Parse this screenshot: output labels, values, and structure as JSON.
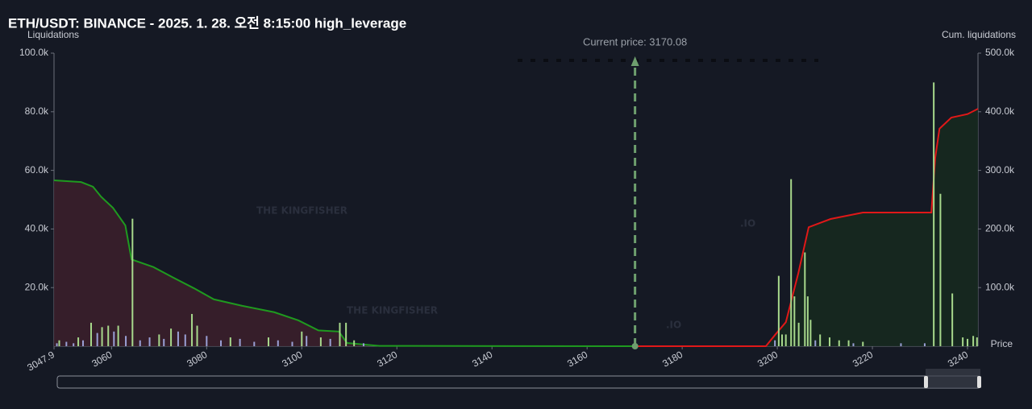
{
  "chart_data": {
    "type": "bar",
    "title": "ETH/USDT: BINANCE - 2025. 1. 28. 오전 8:15:00 high_leverage",
    "y_label": "Liquidations",
    "y2_label": "Cum. liquidations",
    "x_label": "Price",
    "watermark": "THE KINGFISHER",
    "watermark_suffix": ".IO",
    "annotation": {
      "x": 3170.08,
      "label": "Current price: 3170.08",
      "color": "#6e9f6e"
    },
    "xlim": [
      3047.9,
      3242.2
    ],
    "xticks": [
      3047.9,
      3060,
      3080,
      3100,
      3120,
      3140,
      3160,
      3180,
      3200,
      3220,
      3240
    ],
    "ylim": [
      0,
      100000
    ],
    "yticks": [
      {
        "value": 20000,
        "label": "20.0k"
      },
      {
        "value": 40000,
        "label": "40.0k"
      },
      {
        "value": 60000,
        "label": "60.0k"
      },
      {
        "value": 80000,
        "label": "80.0k"
      },
      {
        "value": 100000,
        "label": "100.0k"
      }
    ],
    "y2lim": [
      0,
      500000
    ],
    "y2ticks": [
      {
        "value": 100000,
        "label": "100.0k"
      },
      {
        "value": 200000,
        "label": "200.0k"
      },
      {
        "value": 300000,
        "label": "300.0k"
      },
      {
        "value": 400000,
        "label": "400.0k"
      },
      {
        "value": 500000,
        "label": "500.0k"
      }
    ],
    "series": [
      {
        "type": "bar",
        "color": "#9aa0d6",
        "x": [
          3048.5,
          3050.5,
          3052,
          3054,
          3057,
          3060.5,
          3063,
          3066,
          3068,
          3071,
          3074,
          3075.5,
          3080,
          3083,
          3087,
          3090,
          3095,
          3098,
          3101,
          3106,
          3113,
          3199.5,
          3208,
          3216,
          3226,
          3231
        ],
        "values": [
          1000,
          1500,
          1000,
          2000,
          4500,
          5000,
          3500,
          2000,
          3000,
          2500,
          5000,
          4000,
          3500,
          2000,
          2500,
          1500,
          2000,
          1500,
          3500,
          2500,
          1000,
          2000,
          2000,
          1000,
          1000,
          1000
        ]
      },
      {
        "type": "bar",
        "color": "#a8d98c",
        "x": [
          3049,
          3053,
          3055.7,
          3058,
          3059.3,
          3061.4,
          3064.4,
          3070,
          3072.5,
          3076.9,
          3078,
          3085,
          3093,
          3100,
          3104,
          3108,
          3109.3,
          3111,
          3200.3,
          3201,
          3201.8,
          3202.9,
          3203.6,
          3204.5,
          3205.8,
          3206.4,
          3207,
          3209,
          3211,
          3213,
          3215,
          3218,
          3232.9,
          3234.3,
          3236.8,
          3239,
          3240,
          3241.2,
          3242
        ],
        "values": [
          2000,
          3000,
          8000,
          6500,
          7000,
          7000,
          43500,
          4000,
          6000,
          11000,
          7000,
          3000,
          3000,
          5000,
          3000,
          8000,
          8000,
          2000,
          24000,
          4000,
          4000,
          57000,
          17000,
          8000,
          32000,
          17000,
          9000,
          4000,
          3000,
          2000,
          2000,
          1500,
          90000,
          52000,
          18000,
          3000,
          2500,
          3500,
          3000
        ]
      },
      {
        "type": "line",
        "axis": "y2",
        "color": "#1f9a1f",
        "fill": "#3a1f2b",
        "x": [
          3047.9,
          3053.6,
          3056.1,
          3057.8,
          3060.3,
          3062.9,
          3064.2,
          3068.8,
          3073.0,
          3077.3,
          3081.5,
          3087.4,
          3094.2,
          3099.3,
          3103.5,
          3107.8,
          3109.5,
          3116.3,
          3170.08
        ],
        "values": [
          283000,
          280000,
          272000,
          255000,
          236000,
          206000,
          148000,
          135000,
          117000,
          99000,
          80000,
          69000,
          58000,
          44000,
          27000,
          25000,
          5500,
          500,
          0
        ]
      },
      {
        "type": "line",
        "axis": "y2",
        "color": "#e01818",
        "fill": "#16291f",
        "x": [
          3170.08,
          3197.6,
          3199.6,
          3201.8,
          3204.4,
          3206.6,
          3211.2,
          3218.0,
          3232.4,
          3233.2,
          3234.1,
          3236.6,
          3240.0,
          3242.2
        ],
        "values": [
          0,
          0,
          20000,
          41000,
          124000,
          203000,
          217000,
          228000,
          228000,
          321000,
          371000,
          390000,
          396000,
          405000
        ]
      }
    ]
  }
}
